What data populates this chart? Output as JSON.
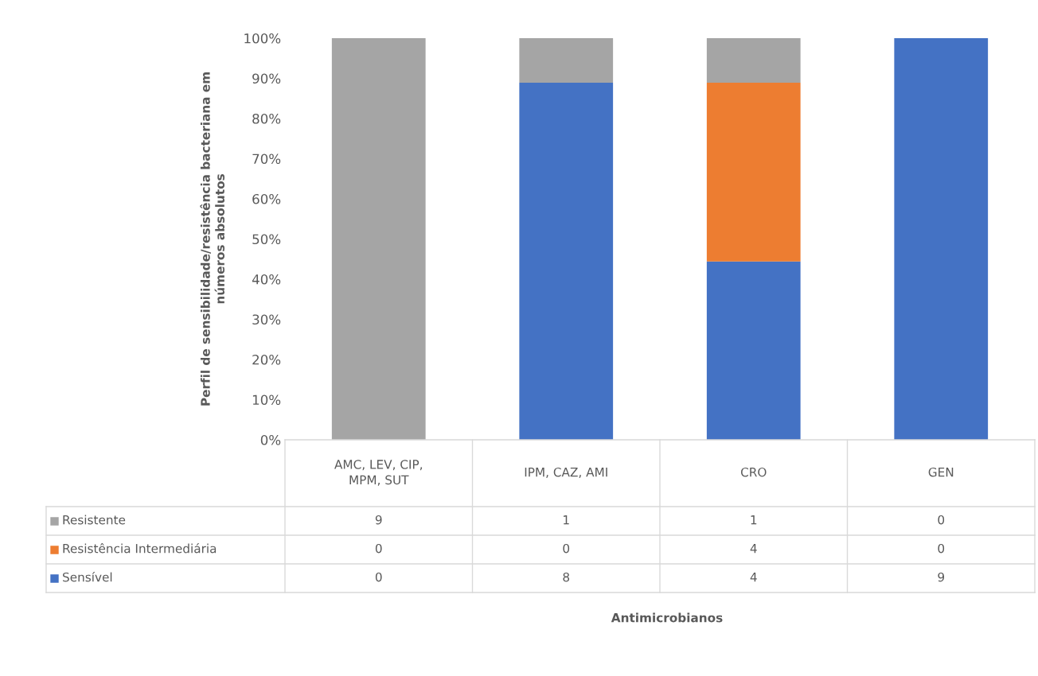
{
  "chart_data": {
    "type": "bar",
    "stacked": true,
    "ylabel": "Perfil de sensibilidade/resistência bacteriana em números absolutos",
    "categories": [
      "AMC, LEV, CIP, MPM, SUT",
      "IPM, CAZ, AMI",
      "CRO",
      "GEN"
    ],
    "series": [
      {
        "name": "Sensível",
        "color": "#4472c4",
        "values": [
          0,
          88.9,
          44.4,
          100
        ]
      },
      {
        "name": "Resistência Intermediária",
        "color": "#ed7d31",
        "values": [
          0,
          0,
          44.5,
          0
        ]
      },
      {
        "name": "Resistente",
        "color": "#a5a5a5",
        "values": [
          100,
          11.1,
          11.1,
          0
        ]
      }
    ],
    "annotations": [
      "9",
      "1",
      "1",
      "0",
      "0",
      "0",
      "4",
      "0",
      "0",
      "8",
      "4",
      "9",
      "Antimicrobianos"
    ],
    "ylim": [
      0,
      100
    ],
    "yticks": [
      {
        "value": 0,
        "label": "0%"
      },
      {
        "value": 10,
        "label": "10%"
      },
      {
        "value": 20,
        "label": "20%"
      },
      {
        "value": 30,
        "label": "30%"
      },
      {
        "value": 40,
        "label": "40%"
      },
      {
        "value": 50,
        "label": "50%"
      },
      {
        "value": 60,
        "label": "60%"
      },
      {
        "value": 70,
        "label": "70%"
      },
      {
        "value": 80,
        "label": "80%"
      },
      {
        "value": 90,
        "label": "90%"
      },
      {
        "value": 100,
        "label": "100%"
      }
    ],
    "grid": false,
    "legend": "bottom"
  }
}
